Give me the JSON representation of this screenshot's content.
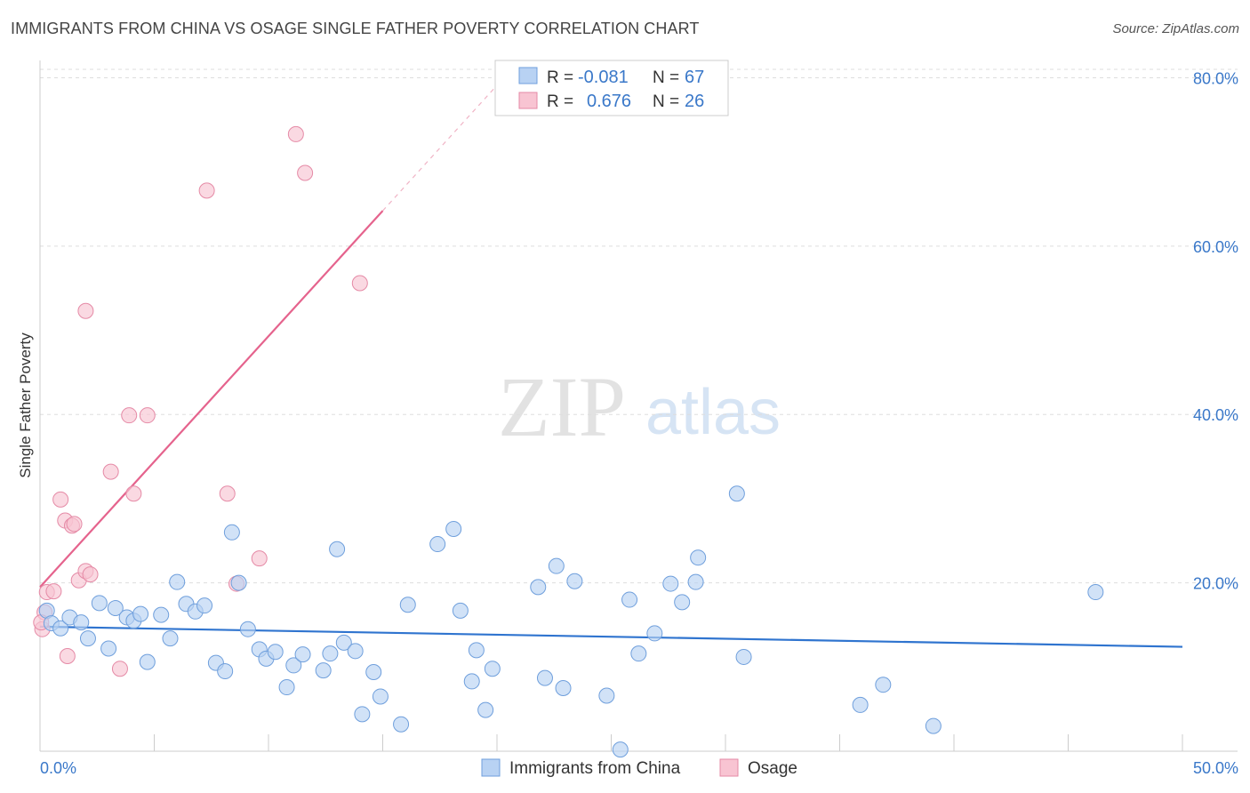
{
  "title": "IMMIGRANTS FROM CHINA VS OSAGE SINGLE FATHER POVERTY CORRELATION CHART",
  "source": "Source: ZipAtlas.com",
  "watermark": {
    "zip": "ZIP",
    "atlas": "atlas"
  },
  "colors": {
    "china_fill": "#b8d2f3",
    "china_stroke": "#6f9fdc",
    "china_line": "#2f74cf",
    "osage_fill": "#f8c4d2",
    "osage_stroke": "#e58aa6",
    "osage_line": "#e5638d",
    "tick_label": "#3a78c9",
    "grid": "#dddddd"
  },
  "stats_legend": [
    {
      "r_label": "R =",
      "r_value": "-0.081",
      "n_label": "N =",
      "n_value": "67"
    },
    {
      "r_label": "R =",
      "r_value": "0.676",
      "n_label": "N =",
      "n_value": "26"
    }
  ],
  "chart_data": {
    "type": "scatter",
    "title": "IMMIGRANTS FROM CHINA VS OSAGE SINGLE FATHER POVERTY CORRELATION CHART",
    "xlabel": "",
    "ylabel": "Single Father Poverty",
    "xlim": [
      0,
      50
    ],
    "ylim": [
      0,
      81
    ],
    "x_tick_labels": [
      "0.0%",
      "50.0%"
    ],
    "y_ticks": [
      20,
      40,
      60,
      80
    ],
    "y_tick_labels": [
      "20.0%",
      "40.0%",
      "60.0%",
      "80.0%"
    ],
    "grid": true,
    "legend_position": "bottom",
    "series": [
      {
        "name": "Immigrants from China",
        "points": [
          [
            0.3,
            16.7
          ],
          [
            0.5,
            15.2
          ],
          [
            0.9,
            14.6
          ],
          [
            1.3,
            15.9
          ],
          [
            1.8,
            15.3
          ],
          [
            2.1,
            13.4
          ],
          [
            2.6,
            17.6
          ],
          [
            3.0,
            12.2
          ],
          [
            3.3,
            17.0
          ],
          [
            3.8,
            15.9
          ],
          [
            4.1,
            15.5
          ],
          [
            4.7,
            10.6
          ],
          [
            4.4,
            16.3
          ],
          [
            5.3,
            16.2
          ],
          [
            5.7,
            13.4
          ],
          [
            6.0,
            20.1
          ],
          [
            6.4,
            17.5
          ],
          [
            6.8,
            16.6
          ],
          [
            7.2,
            17.3
          ],
          [
            7.7,
            10.5
          ],
          [
            8.1,
            9.5
          ],
          [
            8.4,
            26.0
          ],
          [
            8.7,
            20.0
          ],
          [
            9.1,
            14.5
          ],
          [
            9.6,
            12.1
          ],
          [
            9.9,
            11.0
          ],
          [
            10.3,
            11.8
          ],
          [
            10.8,
            7.6
          ],
          [
            11.1,
            10.2
          ],
          [
            11.5,
            11.5
          ],
          [
            12.4,
            9.6
          ],
          [
            12.7,
            11.6
          ],
          [
            13.0,
            24.0
          ],
          [
            13.3,
            12.9
          ],
          [
            13.8,
            11.9
          ],
          [
            14.1,
            4.4
          ],
          [
            14.6,
            9.4
          ],
          [
            14.9,
            6.5
          ],
          [
            15.8,
            3.2
          ],
          [
            16.1,
            17.4
          ],
          [
            17.4,
            24.6
          ],
          [
            18.1,
            26.4
          ],
          [
            18.4,
            16.7
          ],
          [
            18.9,
            8.3
          ],
          [
            19.1,
            12.0
          ],
          [
            19.5,
            4.9
          ],
          [
            19.8,
            9.8
          ],
          [
            21.8,
            19.5
          ],
          [
            22.1,
            8.7
          ],
          [
            22.6,
            22.0
          ],
          [
            22.9,
            7.5
          ],
          [
            23.4,
            20.2
          ],
          [
            24.8,
            6.6
          ],
          [
            25.4,
            0.2
          ],
          [
            25.8,
            18.0
          ],
          [
            26.2,
            11.6
          ],
          [
            26.9,
            14.0
          ],
          [
            27.6,
            19.9
          ],
          [
            28.1,
            17.7
          ],
          [
            28.7,
            20.1
          ],
          [
            28.8,
            23.0
          ],
          [
            30.5,
            30.6
          ],
          [
            30.8,
            11.2
          ],
          [
            35.9,
            5.5
          ],
          [
            36.9,
            7.9
          ],
          [
            39.1,
            3.0
          ],
          [
            46.2,
            18.9
          ]
        ]
      },
      {
        "name": "Osage",
        "points": [
          [
            0.1,
            14.5
          ],
          [
            0.2,
            16.5
          ],
          [
            0.3,
            18.9
          ],
          [
            0.6,
            19.0
          ],
          [
            0.9,
            29.9
          ],
          [
            1.1,
            27.4
          ],
          [
            1.2,
            11.3
          ],
          [
            1.4,
            26.8
          ],
          [
            1.5,
            27.0
          ],
          [
            1.7,
            20.3
          ],
          [
            2.0,
            52.3
          ],
          [
            2.0,
            21.4
          ],
          [
            2.2,
            21.0
          ],
          [
            3.1,
            33.2
          ],
          [
            3.5,
            9.8
          ],
          [
            3.9,
            39.9
          ],
          [
            4.1,
            30.6
          ],
          [
            4.7,
            39.9
          ],
          [
            7.3,
            66.6
          ],
          [
            8.2,
            30.6
          ],
          [
            8.6,
            19.9
          ],
          [
            9.6,
            22.9
          ],
          [
            11.2,
            73.3
          ],
          [
            11.6,
            68.7
          ],
          [
            14.0,
            55.6
          ],
          [
            0.05,
            15.3
          ]
        ]
      }
    ],
    "trend_lines": [
      {
        "series": "Immigrants from China",
        "x": [
          0,
          50
        ],
        "y": [
          14.8,
          12.4
        ]
      },
      {
        "series": "Osage",
        "x": [
          0,
          15
        ],
        "y": [
          19.5,
          64.2
        ],
        "dashed_extension": {
          "x": [
            15,
            20
          ],
          "y": [
            64.2,
            79.1
          ]
        }
      }
    ]
  }
}
